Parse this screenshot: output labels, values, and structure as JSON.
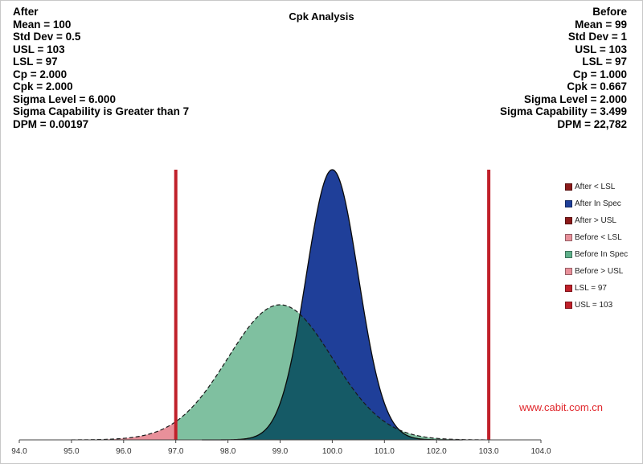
{
  "chart_data": {
    "type": "area",
    "title": "Cpk Analysis",
    "xlim": [
      94.0,
      104.0
    ],
    "x_ticks": [
      "94.0",
      "95.0",
      "96.0",
      "97.0",
      "98.0",
      "99.0",
      "100.0",
      "101.0",
      "102.0",
      "103.0",
      "104.0"
    ],
    "lsl": 97,
    "usl": 103,
    "after": {
      "mean": 100,
      "std": 0.5,
      "stats": [
        "After",
        "Mean = 100",
        "Std Dev = 0.5",
        "USL = 103",
        "LSL = 97",
        "Cp = 2.000",
        "Cpk = 2.000",
        "Sigma Level = 6.000",
        "Sigma Capability is Greater than 7",
        "DPM = 0.00197"
      ]
    },
    "before": {
      "mean": 99,
      "std": 1,
      "stats": [
        "Before",
        "Mean = 99",
        "Std Dev = 1",
        "USL = 103",
        "LSL = 97",
        "Cp = 1.000",
        "Cpk = 0.667",
        "Sigma Level = 2.000",
        "Sigma Capability = 3.499",
        "DPM = 22,782"
      ]
    },
    "legend": [
      {
        "label": "After < LSL",
        "color": "#8b1a1a"
      },
      {
        "label": "After In Spec",
        "color": "#1f3f99"
      },
      {
        "label": "After > USL",
        "color": "#8b1a1a"
      },
      {
        "label": "Before < LSL",
        "color": "#e8909a"
      },
      {
        "label": "Before In Spec",
        "color": "#5fb08a"
      },
      {
        "label": "Before > USL",
        "color": "#e8909a"
      },
      {
        "label": "LSL = 97",
        "color": "#c0202a"
      },
      {
        "label": "USL = 103",
        "color": "#c0202a"
      }
    ],
    "colors": {
      "after_in_spec": "#1f3f99",
      "before_in_spec": "#7fc0a0",
      "before_out_spec": "#e8909a",
      "overlap": "#155a66",
      "spec_line": "#c0202a"
    }
  },
  "watermark": "www.cabit.com.cn"
}
